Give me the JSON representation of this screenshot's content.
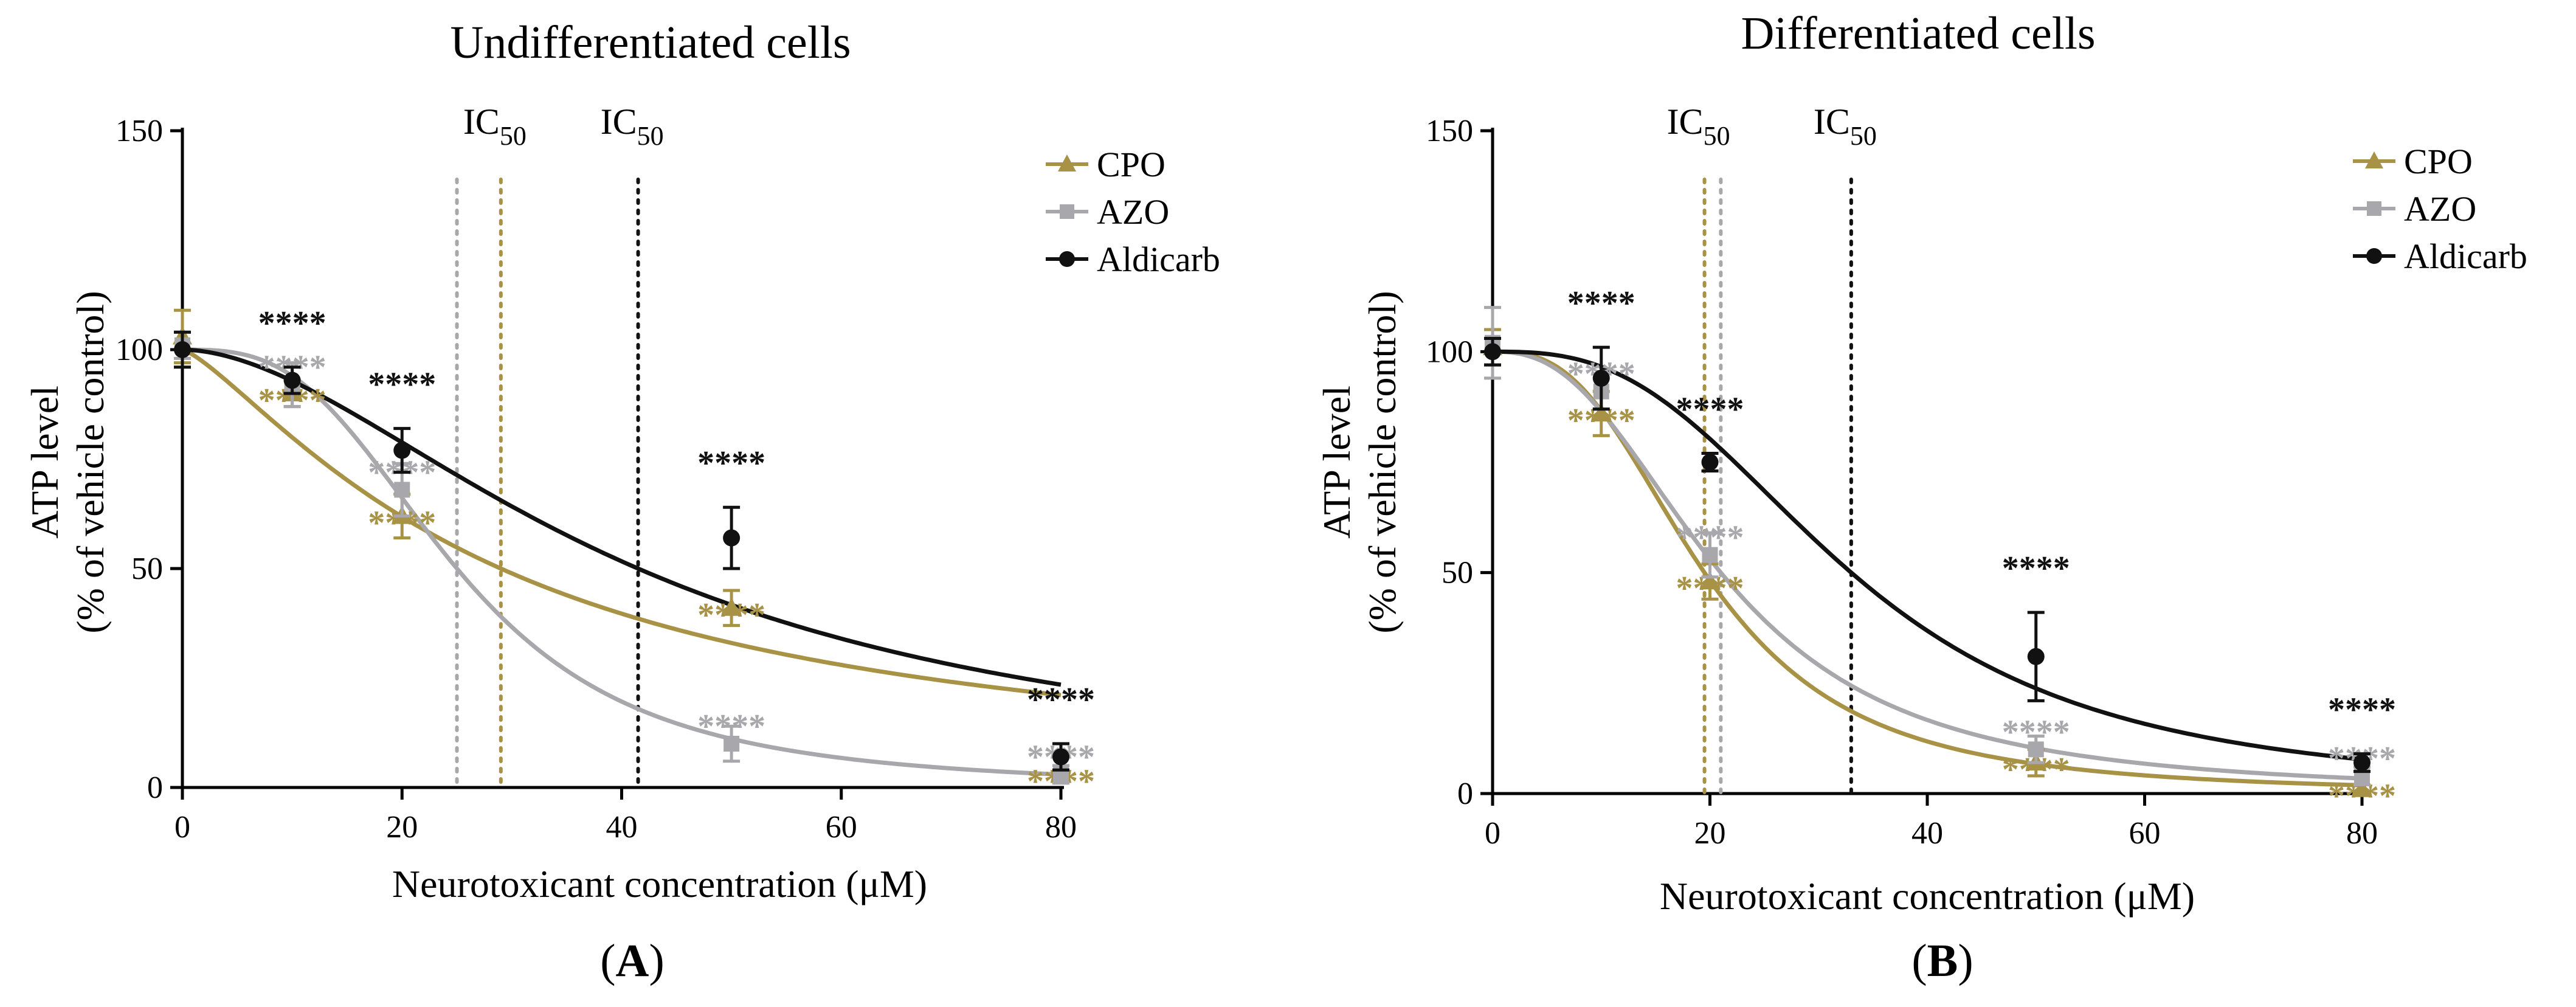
{
  "colors": {
    "CPO": "#a89245",
    "AZO": "#a8a8ac",
    "Aldicarb": "#111111"
  },
  "panels": [
    {
      "label_open": "(",
      "label": "A",
      "label_close": ")",
      "ic_text": "IC",
      "ic_sub": "50",
      "chart_data": {
        "type": "line",
        "title": "Undifferentiated cells",
        "xlabel": "Neurotoxicant concentration (μM)",
        "ylabel_line1": "ATP level",
        "ylabel_line2": "(% of vehicle control)",
        "xlim": [
          0,
          80
        ],
        "ylim": [
          0,
          150
        ],
        "xticks": [
          0,
          20,
          40,
          60,
          80
        ],
        "yticks": [
          0,
          50,
          100,
          150
        ],
        "series": [
          {
            "name": "CPO",
            "points": [
              {
                "x": 0,
                "y": 103,
                "err": 6
              },
              {
                "x": 10,
                "y": 90,
                "err": 3,
                "stars": "****"
              },
              {
                "x": 20,
                "y": 62,
                "err": 5,
                "stars": "****"
              },
              {
                "x": 50,
                "y": 41,
                "err": 4,
                "stars": "****"
              },
              {
                "x": 80,
                "y": 3,
                "err": 2,
                "stars": "****"
              }
            ],
            "curve": {
              "ic50": 29,
              "hill": 1.3
            }
          },
          {
            "name": "AZO",
            "points": [
              {
                "x": 0,
                "y": 101,
                "err": 3
              },
              {
                "x": 10,
                "y": 92,
                "err": 5,
                "stars": "****"
              },
              {
                "x": 20,
                "y": 68,
                "err": 6,
                "stars": "****"
              },
              {
                "x": 50,
                "y": 10,
                "err": 4,
                "stars": "****"
              },
              {
                "x": 80,
                "y": 3,
                "err": 2,
                "stars": "****"
              }
            ],
            "curve": {
              "ic50": 25,
              "hill": 3
            }
          },
          {
            "name": "Aldicarb",
            "points": [
              {
                "x": 0,
                "y": 100,
                "err": 4
              },
              {
                "x": 10,
                "y": 93,
                "err": 3,
                "stars": "****"
              },
              {
                "x": 20,
                "y": 77,
                "err": 5,
                "stars": "****"
              },
              {
                "x": 50,
                "y": 57,
                "err": 7,
                "stars": "****"
              },
              {
                "x": 80,
                "y": 7,
                "err": 3,
                "stars": "****"
              }
            ],
            "curve": {
              "ic50": 41.5,
              "hill": 1.8
            }
          }
        ],
        "ic50_lines": [
          {
            "series": "AZO",
            "x": 25,
            "labeled": false
          },
          {
            "series": "CPO",
            "x": 29,
            "labeled": true
          },
          {
            "series": "Aldicarb",
            "x": 41.5,
            "labeled": true
          }
        ]
      }
    },
    {
      "label_open": "(",
      "label": "B",
      "label_close": ")",
      "ic_text": "IC",
      "ic_sub": "50",
      "chart_data": {
        "type": "line",
        "title": "Differentiated cells",
        "xlabel": "Neurotoxicant concentration (μM)",
        "ylabel_line1": "ATP level",
        "ylabel_line2": "(% of vehicle control)",
        "xlim": [
          0,
          80
        ],
        "ylim": [
          0,
          150
        ],
        "xticks": [
          0,
          20,
          40,
          60,
          80
        ],
        "yticks": [
          0,
          50,
          100,
          150
        ],
        "series": [
          {
            "name": "CPO",
            "points": [
              {
                "x": 0,
                "y": 101,
                "err": 4
              },
              {
                "x": 10,
                "y": 86,
                "err": 5,
                "stars": "****"
              },
              {
                "x": 20,
                "y": 48,
                "err": 4,
                "stars": "****"
              },
              {
                "x": 50,
                "y": 7,
                "err": 3,
                "stars": "****"
              },
              {
                "x": 80,
                "y": 1,
                "err": 1,
                "stars": "****"
              }
            ],
            "curve": {
              "ic50": 19.5,
              "hill": 2.8
            }
          },
          {
            "name": "AZO",
            "points": [
              {
                "x": 0,
                "y": 102,
                "err": 8
              },
              {
                "x": 10,
                "y": 91,
                "err": 4,
                "stars": "****"
              },
              {
                "x": 20,
                "y": 54,
                "err": 5,
                "stars": "****"
              },
              {
                "x": 50,
                "y": 10,
                "err": 3,
                "stars": "****"
              },
              {
                "x": 80,
                "y": 4,
                "err": 2,
                "stars": "****"
              }
            ],
            "curve": {
              "ic50": 21,
              "hill": 2.5
            }
          },
          {
            "name": "Aldicarb",
            "points": [
              {
                "x": 0,
                "y": 100,
                "err": 3
              },
              {
                "x": 10,
                "y": 94,
                "err": 7,
                "stars": "****"
              },
              {
                "x": 20,
                "y": 75,
                "err": 2,
                "stars": "****"
              },
              {
                "x": 50,
                "y": 31,
                "err": 10,
                "stars": "****"
              },
              {
                "x": 80,
                "y": 7,
                "err": 2,
                "stars": "****"
              }
            ],
            "curve": {
              "ic50": 33,
              "hill": 2.8
            }
          }
        ],
        "ic50_lines": [
          {
            "series": "CPO",
            "x": 19.5,
            "labeled": true
          },
          {
            "series": "AZO",
            "x": 21,
            "labeled": false
          },
          {
            "series": "Aldicarb",
            "x": 33,
            "labeled": true
          }
        ]
      }
    }
  ]
}
